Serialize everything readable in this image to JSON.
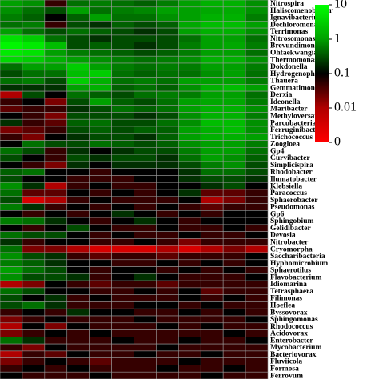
{
  "chart_data": {
    "type": "heatmap",
    "rows": [
      "Nitrospira",
      "Haliscomenobacter",
      "Ignavibacterium",
      "Dechloromonas",
      "Terrimonas",
      "Nitrosomonas",
      "Brevundimonas",
      "Ohtaekwangia",
      "Thermomonas",
      "Dokdonella",
      "Hydrogenophaga",
      "Thauera",
      "Gemmatimonas",
      "Derxia",
      "Ideonella",
      "Maribacter",
      "Methyloversatilis",
      "Parcubacteria",
      "Ferruginibacter",
      "Trichococcus",
      "Zoogloea",
      "Gp4",
      "Curvibacter",
      "Simplicispira",
      "Rhodobacter",
      "Ilumatobacter",
      "Klebsiella",
      "Paracoccus",
      "Sphaerobacter",
      "Pseudomonas",
      "Gp6",
      "Sphingobium",
      "Gelidibacter",
      "Devosia",
      "Nitrobacter",
      "Cryomorpha",
      "Saccharibacteria",
      "Hyphomicrobium",
      "Sphaerotilus",
      "Flavobacterium",
      "Idiomarina",
      "Tetrasphaera",
      "Filimonas",
      "Hoeflea",
      "Byssovorax",
      "Sphingomonas",
      "Rhodococcus",
      "Acidovorax",
      "Enterobacter",
      "Mycobacterium",
      "Bacteriovorax",
      "Fluviicola",
      "Formosa",
      "Ferrovum"
    ],
    "values": [
      [
        1,
        0.8,
        0.05,
        0.5,
        0.6,
        0.5,
        0.4,
        0.6,
        1,
        1.5,
        1.5,
        0.8
      ],
      [
        0.8,
        0.5,
        0.3,
        1,
        0.5,
        0.6,
        0.7,
        1,
        1,
        1.2,
        1.3,
        0.8
      ],
      [
        0.6,
        0.4,
        0.1,
        0.4,
        1,
        0.5,
        0.5,
        0.8,
        1,
        1.5,
        1.5,
        0.6
      ],
      [
        0.5,
        0.6,
        0.05,
        0.3,
        0.2,
        0.4,
        0.3,
        0.4,
        1.2,
        2,
        2,
        1
      ],
      [
        1,
        0.5,
        0.3,
        0.5,
        0.4,
        0.3,
        0.2,
        0.3,
        1,
        1.5,
        1.5,
        0.8
      ],
      [
        5,
        3,
        0.5,
        0.3,
        0.2,
        0.3,
        0.3,
        0.3,
        0.5,
        1,
        1,
        0.5
      ],
      [
        8,
        6,
        2,
        0.3,
        0.4,
        0.3,
        0.2,
        0.3,
        0.6,
        1,
        1.2,
        0.6
      ],
      [
        6,
        5,
        1,
        0.6,
        0.5,
        0.4,
        0.3,
        0.4,
        0.6,
        1,
        1,
        0.5
      ],
      [
        4,
        3,
        1.5,
        1,
        0.8,
        0.6,
        0.5,
        0.6,
        0.8,
        1.5,
        1.5,
        0.8
      ],
      [
        0.5,
        1,
        1,
        3,
        1,
        0.6,
        0.5,
        0.6,
        0.6,
        1,
        1,
        0.6
      ],
      [
        0.3,
        0.5,
        0.5,
        2,
        3,
        0.5,
        0.4,
        0.5,
        0.5,
        0.8,
        1,
        0.5
      ],
      [
        0.5,
        0.6,
        0.3,
        3,
        1.5,
        0.5,
        0.6,
        0.5,
        1,
        1,
        1,
        0.6
      ],
      [
        0.2,
        0.2,
        0.2,
        1,
        1.5,
        0.4,
        0.5,
        0.4,
        0.8,
        1.5,
        2,
        1
      ],
      [
        0.01,
        0.3,
        0.1,
        0.5,
        0.4,
        0.3,
        0.5,
        0.6,
        0.6,
        1,
        1,
        0.5
      ],
      [
        0.05,
        0.1,
        0.02,
        0.3,
        1,
        0.4,
        0.3,
        0.5,
        1,
        1.2,
        1.2,
        0.6
      ],
      [
        0.03,
        0.05,
        0.05,
        0.2,
        0.3,
        0.5,
        0.4,
        0.5,
        1,
        1.5,
        1.5,
        0.8
      ],
      [
        0.1,
        0.05,
        0.02,
        0.3,
        0.3,
        0.3,
        0.2,
        0.3,
        0.8,
        1.5,
        1.5,
        0.6
      ],
      [
        0.2,
        0.05,
        0.03,
        0.4,
        0.5,
        0.3,
        0.3,
        0.5,
        0.8,
        2,
        2,
        0.8
      ],
      [
        0.02,
        0.03,
        0.05,
        0.3,
        0.4,
        0.3,
        0.4,
        0.4,
        1,
        1.5,
        2,
        0.8
      ],
      [
        0.05,
        0.02,
        0.1,
        0.2,
        0.3,
        0.3,
        0.2,
        0.4,
        1,
        1.5,
        1.5,
        1
      ],
      [
        0.1,
        0.5,
        0.3,
        0.3,
        0.5,
        0.4,
        0.3,
        0.4,
        0.8,
        1,
        1,
        0.6
      ],
      [
        0.5,
        0.3,
        0.05,
        0.2,
        0.1,
        0.2,
        0.3,
        0.3,
        0.6,
        1,
        1,
        0.5
      ],
      [
        0.3,
        0.1,
        0.05,
        0.3,
        0.2,
        0.3,
        0.3,
        0.2,
        0.5,
        1,
        0.8,
        0.4
      ],
      [
        0.1,
        0.05,
        0.02,
        0.2,
        0.1,
        0.2,
        0.2,
        0.2,
        0.3,
        0.6,
        0.8,
        0.3
      ],
      [
        0.4,
        0.5,
        0.1,
        0.1,
        0.05,
        0.1,
        0.1,
        0.1,
        0.2,
        0.5,
        0.5,
        0.3
      ],
      [
        0.3,
        0.1,
        0.1,
        0.05,
        0.05,
        0.05,
        0.1,
        0.1,
        0.2,
        0.3,
        0.3,
        0.2
      ],
      [
        0.8,
        0.2,
        0.01,
        0.05,
        0.1,
        0.05,
        0.05,
        0.1,
        0.1,
        0.2,
        0.3,
        0.1
      ],
      [
        0.5,
        0.03,
        0.03,
        0.1,
        0.05,
        0.1,
        0.05,
        0.1,
        0.2,
        0.03,
        0.03,
        0.05
      ],
      [
        0.3,
        0.005,
        0.01,
        0.05,
        0.1,
        0.05,
        0.05,
        0.05,
        0.1,
        0.01,
        0.02,
        0.05
      ],
      [
        0.6,
        0.2,
        0.05,
        0.1,
        0.05,
        0.1,
        0.05,
        0.1,
        0.05,
        0.03,
        0.05,
        0.05
      ],
      [
        0.1,
        0.05,
        0.1,
        0.05,
        0.1,
        0.2,
        0.1,
        0.05,
        0.1,
        0.05,
        0.1,
        0.1
      ],
      [
        0.6,
        0.5,
        0.2,
        0.1,
        0.05,
        0.1,
        0.2,
        0.1,
        0.05,
        0.1,
        0.1,
        0.1
      ],
      [
        0.1,
        0.05,
        0.1,
        0.3,
        0.1,
        0.05,
        0.05,
        0.1,
        0.05,
        0.05,
        0.1,
        0.05
      ],
      [
        0.5,
        0.3,
        0.3,
        0.1,
        0.05,
        0.1,
        0.05,
        0.05,
        0.1,
        0.05,
        0.05,
        0.1
      ],
      [
        0.2,
        0.05,
        0.1,
        0.1,
        0.05,
        0.05,
        0.1,
        0.05,
        0.02,
        0.05,
        0.05,
        0.05
      ],
      [
        0.5,
        0.02,
        0.02,
        0.01,
        0.005,
        0.005,
        0.005,
        0.01,
        0.005,
        0.01,
        0.02,
        0.01
      ],
      [
        0.8,
        0.3,
        0.2,
        0.05,
        0.03,
        0.05,
        0.05,
        0.03,
        0.05,
        0.05,
        0.05,
        0.1
      ],
      [
        0.6,
        0.4,
        0.2,
        0.1,
        0.1,
        0.05,
        0.05,
        0.1,
        0.05,
        0.1,
        0.05,
        0.1
      ],
      [
        1,
        0.5,
        0.3,
        0.1,
        0.05,
        0.1,
        0.1,
        0.05,
        0.1,
        0.05,
        0.1,
        0.05
      ],
      [
        0.8,
        0.3,
        0.3,
        0.2,
        0.05,
        0.1,
        0.2,
        0.1,
        0.05,
        0.05,
        0.05,
        0.1
      ],
      [
        0.01,
        0.02,
        0.1,
        0.05,
        0.03,
        0.05,
        0.05,
        0.03,
        0.05,
        0.05,
        0.05,
        0.05
      ],
      [
        0.5,
        0.3,
        0.1,
        0.1,
        0.05,
        0.05,
        0.1,
        0.05,
        0.1,
        0.03,
        0.05,
        0.05
      ],
      [
        0.3,
        0.1,
        0.2,
        0.05,
        0.1,
        0.05,
        0.05,
        0.05,
        0.1,
        0.05,
        0.1,
        0.05
      ],
      [
        0.3,
        0.5,
        0.2,
        0.05,
        0.05,
        0.05,
        0.1,
        0.1,
        0.05,
        0.1,
        0.05,
        0.05
      ],
      [
        0.05,
        0.1,
        0.05,
        0.2,
        0.1,
        0.1,
        0.05,
        0.05,
        0.1,
        0.05,
        0.1,
        0.05
      ],
      [
        0.02,
        0.05,
        0.1,
        0.05,
        0.05,
        0.05,
        0.1,
        0.05,
        0.05,
        0.05,
        0.05,
        0.1
      ],
      [
        0.01,
        0.1,
        0.02,
        0.1,
        0.05,
        0.05,
        0.05,
        0.1,
        0.05,
        0.1,
        0.05,
        0.05
      ],
      [
        0.02,
        0.05,
        0.1,
        0.05,
        0.1,
        0.05,
        0.05,
        0.05,
        0.05,
        0.05,
        0.1,
        0.05
      ],
      [
        0.5,
        0.2,
        0.05,
        0.05,
        0.05,
        0.1,
        0.05,
        0.05,
        0.1,
        0.05,
        0.05,
        0.1
      ],
      [
        0.05,
        0.02,
        0.1,
        0.05,
        0.05,
        0.05,
        0.05,
        0.1,
        0.05,
        0.05,
        0.05,
        0.05
      ],
      [
        0.01,
        0.05,
        0.03,
        0.1,
        0.05,
        0.05,
        0.1,
        0.05,
        0.05,
        0.1,
        0.05,
        0.05
      ],
      [
        0.02,
        0.05,
        0.1,
        0.05,
        0.03,
        0.05,
        0.05,
        0.05,
        0.1,
        0.05,
        0.05,
        0.05
      ],
      [
        0.05,
        0.1,
        0.05,
        0.1,
        0.05,
        0.05,
        0.05,
        0.1,
        0.05,
        0.05,
        0.1,
        0.05
      ],
      [
        0.1,
        0.05,
        0.05,
        0.05,
        0.1,
        0.05,
        0.05,
        0.05,
        0.05,
        0.1,
        0.05,
        0.05
      ]
    ],
    "colorbar_ticks": [
      10,
      1,
      0.1,
      0.01,
      0
    ],
    "colorbar_colors": [
      "#00ff00",
      "#00a000",
      "#000000",
      "#b00000",
      "#ff0000"
    ]
  }
}
